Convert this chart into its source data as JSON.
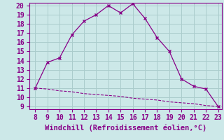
{
  "xlabel": "Windchill (Refroidissement éolien,°C)",
  "x_line1": [
    8,
    9,
    10,
    11,
    12,
    13,
    14,
    15,
    16,
    17,
    18,
    19,
    20,
    21,
    22,
    23
  ],
  "y_line1": [
    11,
    13.8,
    14.3,
    16.8,
    18.3,
    19.0,
    20.0,
    19.2,
    20.2,
    18.6,
    16.5,
    15.0,
    12.0,
    11.2,
    10.9,
    9.0
  ],
  "x_line2": [
    8,
    9,
    10,
    11,
    12,
    13,
    14,
    15,
    16,
    17,
    18,
    19,
    20,
    21,
    22,
    23
  ],
  "y_line2": [
    11.0,
    10.9,
    10.7,
    10.6,
    10.4,
    10.3,
    10.2,
    10.1,
    9.9,
    9.8,
    9.7,
    9.5,
    9.4,
    9.3,
    9.1,
    9.0
  ],
  "line_color": "#880088",
  "bg_color": "#cce8e8",
  "grid_color": "#aacccc",
  "spine_color": "#880088",
  "ylim": [
    9,
    20
  ],
  "xlim": [
    8,
    23
  ],
  "yticks": [
    9,
    10,
    11,
    12,
    13,
    14,
    15,
    16,
    17,
    18,
    19,
    20
  ],
  "xticks": [
    8,
    9,
    10,
    11,
    12,
    13,
    14,
    15,
    16,
    17,
    18,
    19,
    20,
    21,
    22,
    23
  ],
  "tick_fontsize": 7,
  "xlabel_fontsize": 7.5
}
